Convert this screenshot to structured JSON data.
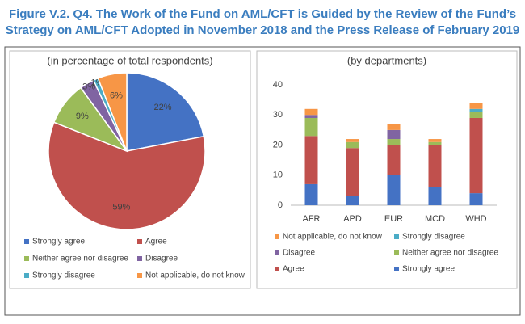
{
  "title": "Figure V.2. Q4. The Work of the Fund on AML/CFT is Guided by the Review of the Fund’s Strategy on AML/CFT Adopted in November 2018 and the Press Release of February 2019",
  "chart_data": [
    {
      "type": "pie",
      "subtitle": "(in percentage of total respondents)",
      "categories": [
        "Strongly agree",
        "Agree",
        "Neither agree nor disagree",
        "Disagree",
        "Strongly disagree",
        "Not applicable, do not know"
      ],
      "values": [
        22,
        59,
        9,
        3,
        1,
        6
      ],
      "value_labels": [
        "22%",
        "59%",
        "9%",
        "3%",
        "1%",
        "6%"
      ],
      "colors": [
        "#4472c4",
        "#c0504d",
        "#9bbb59",
        "#8064a2",
        "#4bacc6",
        "#f79646"
      ]
    },
    {
      "type": "bar",
      "subtitle": "(by departments)",
      "stacked": true,
      "categories": [
        "AFR",
        "APD",
        "EUR",
        "MCD",
        "WHD"
      ],
      "series": [
        {
          "name": "Strongly agree",
          "color": "#4472c4",
          "values": [
            7,
            3,
            10,
            6,
            4
          ]
        },
        {
          "name": "Agree",
          "color": "#c0504d",
          "values": [
            16,
            16,
            10,
            14,
            25
          ]
        },
        {
          "name": "Neither agree nor disagree",
          "color": "#9bbb59",
          "values": [
            6,
            2,
            2,
            1,
            2
          ]
        },
        {
          "name": "Disagree",
          "color": "#8064a2",
          "values": [
            1,
            0,
            3,
            0,
            0
          ]
        },
        {
          "name": "Strongly disagree",
          "color": "#4bacc6",
          "values": [
            0,
            0,
            0,
            0,
            1
          ]
        },
        {
          "name": "Not applicable, do not know",
          "color": "#f79646",
          "values": [
            2,
            1,
            2,
            1,
            2
          ]
        }
      ],
      "ylim": [
        0,
        40
      ],
      "yticks": [
        0,
        10,
        20,
        30,
        40
      ],
      "grid": false
    }
  ]
}
